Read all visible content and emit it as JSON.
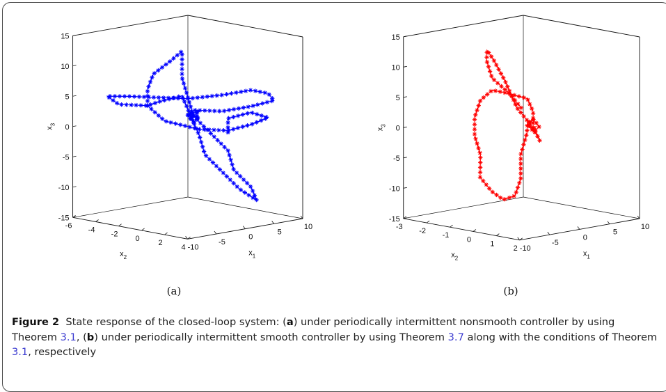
{
  "caption": {
    "label": "Figure 2",
    "intro": "State response of the closed-loop system: (",
    "part_a": "a",
    "text_a": ") under periodically intermittent nonsmooth controller by using Theorem ",
    "ref_a": "3.1",
    "mid": ", (",
    "part_b": "b",
    "text_b": ") under periodically intermittent smooth controller by using Theorem ",
    "ref_b1": "3.7",
    "text_c": " along with the conditions of Theorem ",
    "ref_b2": "3.1",
    "end": ", respectively"
  },
  "chart_data": [
    {
      "type": "line",
      "panel_label": "(a)",
      "marker": "star",
      "color": "#0000ff",
      "xlabel": "x1",
      "ylabel": "x2",
      "zlabel": "x3",
      "xlim": [
        -10,
        10
      ],
      "ylim": [
        -6,
        4
      ],
      "zlim": [
        -15,
        15
      ],
      "x_ticks": [
        "-10",
        "-5",
        "0",
        "5",
        "10"
      ],
      "y_ticks": [
        "4",
        "2",
        "0",
        "-2",
        "-4",
        "-6"
      ],
      "z_ticks": [
        "15",
        "10",
        "5",
        "0",
        "-5",
        "-10",
        "-15"
      ],
      "series": [
        {
          "points": [
            [
              3,
              1,
              -1
            ],
            [
              5,
              0,
              2
            ],
            [
              7,
              1,
              3
            ],
            [
              8,
              2,
              2
            ],
            [
              7,
              1,
              1
            ],
            [
              5,
              0,
              0
            ],
            [
              2,
              -1,
              0
            ],
            [
              -2,
              -2,
              1
            ],
            [
              -5,
              -2,
              3
            ],
            [
              -7,
              -1,
              5
            ],
            [
              -8,
              0,
              7
            ],
            [
              -7,
              1,
              9
            ],
            [
              -5,
              1,
              11
            ],
            [
              -3,
              0,
              10
            ],
            [
              -1,
              -1,
              8
            ],
            [
              0,
              -1,
              5
            ],
            [
              1,
              -1,
              2
            ],
            [
              2,
              0,
              -1
            ],
            [
              3,
              1,
              -4
            ],
            [
              4,
              1,
              -7
            ],
            [
              5,
              2,
              -10
            ],
            [
              6,
              2,
              -12
            ],
            [
              5,
              1,
              -10
            ],
            [
              4,
              0,
              -7
            ],
            [
              3,
              -1,
              -4
            ],
            [
              2,
              -1,
              -1
            ],
            [
              1,
              -1,
              1
            ],
            [
              0,
              -1,
              3
            ],
            [
              -1,
              -1,
              5
            ],
            [
              -3,
              -2,
              4
            ],
            [
              -5,
              -2,
              3
            ],
            [
              -8,
              -3,
              3
            ],
            [
              -10,
              -3,
              4
            ],
            [
              -8,
              -2,
              4
            ],
            [
              -5,
              -1,
              4
            ],
            [
              -2,
              0,
              4
            ],
            [
              2,
              1,
              5
            ],
            [
              5,
              2,
              6
            ],
            [
              8,
              2,
              6
            ],
            [
              9,
              2,
              5
            ],
            [
              7,
              1,
              4
            ],
            [
              4,
              0,
              3
            ],
            [
              1,
              -1,
              3
            ],
            [
              0,
              -1,
              2
            ],
            [
              1,
              -1,
              2
            ],
            [
              2,
              -1,
              3
            ],
            [
              0,
              -1,
              2
            ],
            [
              1,
              -1,
              1
            ],
            [
              2,
              -1,
              2
            ],
            [
              0,
              -1,
              2
            ],
            [
              1,
              -1,
              1
            ],
            [
              2,
              -1,
              2
            ],
            [
              1,
              -1,
              2
            ]
          ]
        }
      ]
    },
    {
      "type": "line",
      "panel_label": "(b)",
      "marker": "star",
      "color": "#ff0000",
      "xlabel": "x1",
      "ylabel": "x2",
      "zlabel": "x3",
      "xlim": [
        -10,
        10
      ],
      "ylim": [
        -3,
        2
      ],
      "zlim": [
        -15,
        15
      ],
      "x_ticks": [
        "-10",
        "-5",
        "0",
        "5",
        "10"
      ],
      "y_ticks": [
        "2",
        "1",
        "0",
        "-1",
        "-2",
        "-3"
      ],
      "z_ticks": [
        "15",
        "10",
        "5",
        "0",
        "-5",
        "-10",
        "-15"
      ],
      "series": [
        {
          "points": [
            [
              2,
              -1,
              4
            ],
            [
              0,
              -1,
              6
            ],
            [
              -3,
              -1,
              8
            ],
            [
              -6,
              -0.5,
              10
            ],
            [
              -8,
              0,
              11
            ],
            [
              -9,
              0.5,
              9
            ],
            [
              -9,
              1,
              5
            ],
            [
              -7,
              1,
              1
            ],
            [
              -4,
              1,
              -2
            ],
            [
              -1,
              0.5,
              -3
            ],
            [
              1,
              0,
              -2
            ],
            [
              2,
              -0.5,
              0
            ],
            [
              2,
              -0.5,
              3
            ],
            [
              1,
              -0.5,
              5
            ],
            [
              -1,
              -1,
              6
            ],
            [
              -3,
              -1,
              6
            ],
            [
              -5,
              -1,
              4
            ],
            [
              -6,
              -1,
              1
            ],
            [
              -6,
              -1,
              -2
            ],
            [
              -5,
              -1,
              -5
            ],
            [
              -3,
              -1.5,
              -8
            ],
            [
              -1,
              -1.5,
              -10
            ],
            [
              1,
              -1.5,
              -11
            ],
            [
              3,
              -1.5,
              -10
            ],
            [
              4,
              -1.5,
              -7
            ],
            [
              4,
              -1.5,
              -3
            ],
            [
              3,
              -1,
              0
            ],
            [
              1,
              -0.5,
              1
            ],
            [
              0,
              0,
              1
            ],
            [
              -1,
              0,
              0
            ],
            [
              0,
              0,
              -1
            ],
            [
              1,
              0,
              0
            ],
            [
              0,
              0,
              1
            ],
            [
              -1,
              0,
              0
            ],
            [
              0,
              0,
              -0.5
            ],
            [
              0.5,
              0,
              0
            ]
          ]
        }
      ]
    }
  ]
}
